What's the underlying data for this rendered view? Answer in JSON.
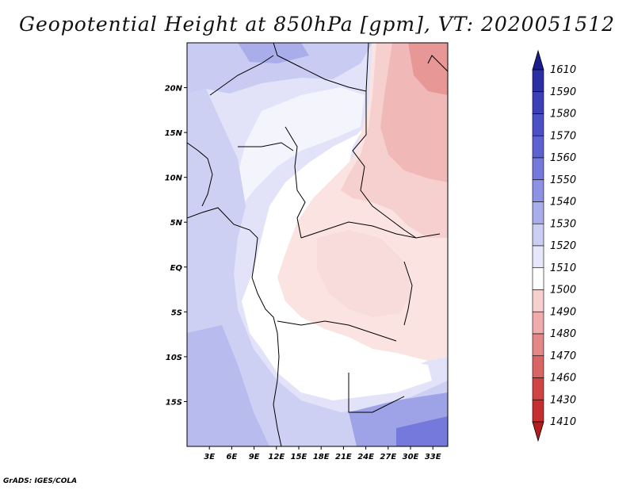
{
  "title": "Geopotential Height at 850hPa [gpm], VT: 2020051512",
  "credit": "GrADS: IGES/COLA",
  "map": {
    "lat_labels": [
      "20N",
      "15N",
      "10N",
      "5N",
      "EQ",
      "5S",
      "10S",
      "15S"
    ],
    "lat_values": [
      20,
      15,
      10,
      5,
      0,
      -5,
      -10,
      -15
    ],
    "lon_labels": [
      "3E",
      "6E",
      "9E",
      "12E",
      "15E",
      "18E",
      "21E",
      "24E",
      "27E",
      "30E",
      "33E"
    ],
    "lon_values": [
      3,
      6,
      9,
      12,
      15,
      18,
      21,
      24,
      27,
      30,
      33
    ],
    "lon_range": [
      0,
      35
    ],
    "lat_range": [
      -20,
      25
    ]
  },
  "colorbar": {
    "levels": [
      "1610",
      "1590",
      "1580",
      "1570",
      "1560",
      "1550",
      "1540",
      "1530",
      "1520",
      "1510",
      "1500",
      "1490",
      "1480",
      "1470",
      "1460",
      "1430",
      "1410"
    ],
    "colors": [
      "#1b1d8f",
      "#2a2fa3",
      "#3b3fb8",
      "#4b50c6",
      "#5c62d0",
      "#7479db",
      "#8d92e4",
      "#a9ade9",
      "#cbcef2",
      "#e6e7fa",
      "#ffffff",
      "#f6d0cf",
      "#efacab",
      "#e38887",
      "#d96565",
      "#d04444",
      "#c62f2f",
      "#b41d1d"
    ]
  }
}
